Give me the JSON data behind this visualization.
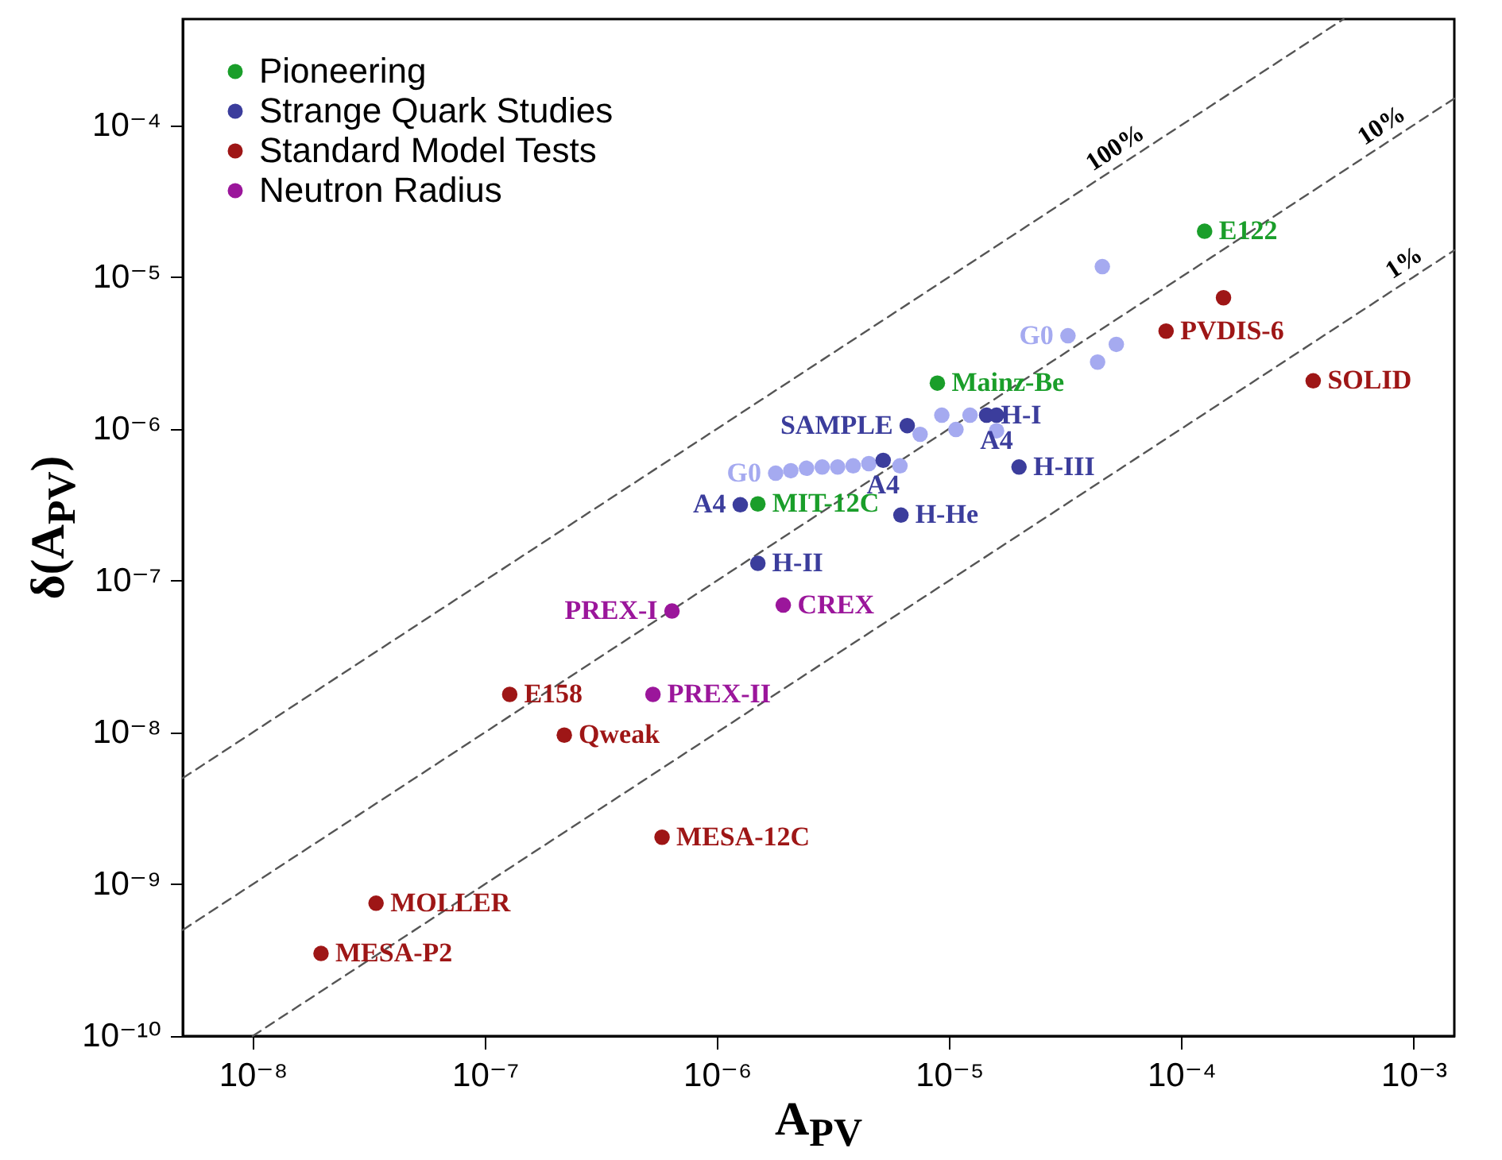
{
  "chart_data": {
    "type": "scatter",
    "xlabel": "A$_{PV}$",
    "ylabel": "δ(A$_{PV}$)",
    "log": "xy",
    "marker": "circle",
    "legend": "top left",
    "xlim": [
      5e-09,
      0.0015
    ],
    "ylim": [
      1e-10,
      0.0005
    ],
    "xticks": [
      {
        "value": 1e-08,
        "label": "10⁻⁸"
      },
      {
        "value": 1e-07,
        "label": "10⁻⁷"
      },
      {
        "value": 1e-06,
        "label": "10⁻⁶"
      },
      {
        "value": 1e-05,
        "label": "10⁻⁵"
      },
      {
        "value": 0.0001,
        "label": "10⁻⁴"
      },
      {
        "value": 0.001,
        "label": "10⁻³"
      }
    ],
    "yticks": [
      {
        "value": 1e-10,
        "label": "10⁻¹⁰"
      },
      {
        "value": 1e-09,
        "label": "10⁻⁹"
      },
      {
        "value": 1e-08,
        "label": "10⁻⁸"
      },
      {
        "value": 1e-07,
        "label": "10⁻⁷"
      },
      {
        "value": 1e-06,
        "label": "10⁻⁶"
      },
      {
        "value": 1e-05,
        "label": "10⁻⁵"
      },
      {
        "value": 0.0001,
        "label": "10⁻⁴"
      }
    ],
    "series": [
      {
        "type": "line",
        "name": "100%",
        "color": "#555555",
        "line_style": "dashed",
        "marker": "none",
        "x": [
          5e-09,
          5.7e-05,
          0.0005
        ],
        "values": [
          5e-09,
          5.7e-05,
          0.0005
        ]
      },
      {
        "type": "line",
        "name": "10%",
        "color": "#555555",
        "line_style": "dashed",
        "marker": "none",
        "x": [
          5e-09,
          0.0008,
          0.0015
        ],
        "values": [
          5e-10,
          8e-05,
          0.00015
        ]
      },
      {
        "type": "line",
        "name": "1%",
        "color": "#555555",
        "line_style": "dashed",
        "marker": "none",
        "x": [
          1e-08,
          0.001,
          0.0015
        ],
        "values": [
          1e-10,
          1e-05,
          1.5e-05
        ]
      },
      {
        "color": "#a5aaf0",
        "x": [
          1.79e-06,
          2.08e-06,
          2.43e-06,
          2.84e-06,
          3.31e-06,
          3.86e-06,
          4.51e-06,
          5.26e-06,
          6.14e-06,
          7.5e-06,
          9.3e-06,
          1.07e-05,
          1.23e-05,
          1.6e-05,
          3.25e-05,
          4.57e-05,
          5.25e-05,
          4.36e-05
        ],
        "values": [
          5.1e-07,
          5.3e-07,
          5.5e-07,
          5.6e-07,
          5.6e-07,
          5.7e-07,
          5.9e-07,
          null,
          5.7e-07,
          9.2e-07,
          1.23e-06,
          9.9e-07,
          1.23e-06,
          9.7e-07,
          4.1e-06,
          1.17e-05,
          3.6e-06,
          2.75e-06
        ],
        "value_labels": [
          "G0",
          null,
          null,
          null,
          null,
          null,
          null,
          null,
          null,
          null,
          null,
          null,
          null,
          null,
          "G0",
          null,
          null,
          null
        ]
      },
      {
        "name": "Pioneering",
        "color": "#1a9e2a",
        "x": [
          0.000126,
          8.9e-06,
          1.5e-06
        ],
        "values": [
          2e-05,
          2e-06,
          3.2e-07
        ],
        "value_labels": [
          "E122",
          "Mainz-Be",
          "MIT-12C"
        ]
      },
      {
        "name": "Strange Quark Studies",
        "color": "#3b3d9c",
        "x": [
          6.6e-06,
          1.45e-05,
          1.6e-05,
          5.2e-06,
          1.26e-06,
          6.2e-06,
          1.5e-06,
          2e-05
        ],
        "values": [
          1.05e-06,
          1.23e-06,
          1.23e-06,
          6.2e-07,
          3.16e-07,
          2.7e-07,
          1.3e-07,
          5.6e-07
        ],
        "value_labels": [
          "SAMPLE",
          "H-I",
          "A4",
          "A4",
          "A4",
          "H-He",
          "H-II",
          "H-III"
        ]
      },
      {
        "name": "Standard Model Tests",
        "color": "#9e1616",
        "x": [
          8.6e-05,
          0.000152,
          0.00037,
          1.28e-07,
          2.2e-07,
          5.8e-07,
          3.4e-08,
          1.97e-08
        ],
        "values": [
          4.4e-06,
          7.3e-06,
          2.07e-06,
          1.78e-08,
          9.6e-09,
          2.04e-09,
          7.5e-10,
          3.5e-10
        ],
        "value_labels": [
          "PVDIS-6",
          null,
          "SOLID",
          "E158",
          "Qweak",
          "MESA-12C",
          "MOLLER",
          "MESA-P2"
        ]
      },
      {
        "name": "Neutron Radius",
        "color": "#9b169b",
        "x": [
          6.4e-07,
          1.93e-06,
          5.3e-07
        ],
        "values": [
          6.3e-08,
          6.9e-08,
          1.78e-08
        ],
        "value_labels": [
          "PREX-I",
          "CREX",
          "PREX-II"
        ]
      }
    ]
  }
}
